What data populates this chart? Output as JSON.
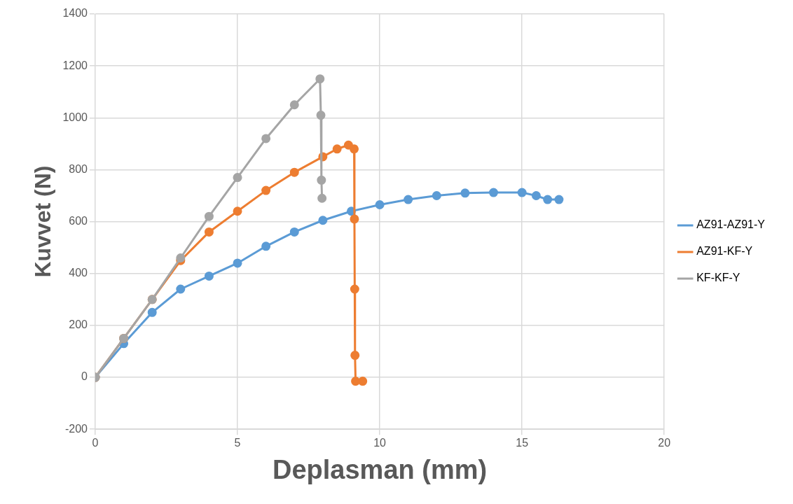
{
  "chart_data": {
    "type": "line",
    "xlabel": "Deplasman (mm)",
    "ylabel": "Kuvvet (N)",
    "xlim": [
      0,
      20
    ],
    "xticks": [
      0,
      5,
      10,
      15,
      20
    ],
    "ylim": [
      -200,
      1400
    ],
    "yticks": [
      -200,
      0,
      200,
      400,
      600,
      800,
      1000,
      1200,
      1400
    ],
    "grid": true,
    "legend": "right",
    "marker": "circle",
    "line_style": "solid",
    "series": [
      {
        "name": "AZ91-AZ91-Y",
        "color": "#5b9bd5",
        "x": [
          0,
          1,
          2,
          3,
          4,
          5,
          6,
          7,
          8,
          9,
          10,
          11,
          12,
          13,
          14,
          15,
          15.5,
          15.9,
          16.3
        ],
        "values": [
          0,
          130,
          250,
          340,
          390,
          440,
          505,
          560,
          605,
          640,
          665,
          685,
          700,
          710,
          712,
          712,
          700,
          685,
          685
        ]
      },
      {
        "name": "AZ91-KF-Y",
        "color": "#ed7d31",
        "x": [
          0,
          1,
          2,
          3,
          4,
          5,
          6,
          7,
          8,
          8.5,
          8.9,
          9.1,
          9.11,
          9.12,
          9.13,
          9.15,
          9.4
        ],
        "values": [
          0,
          150,
          300,
          450,
          560,
          640,
          720,
          790,
          850,
          880,
          895,
          880,
          610,
          340,
          85,
          -15,
          -15
        ]
      },
      {
        "name": "KF-KF-Y",
        "color": "#a5a5a5",
        "x": [
          0,
          1,
          2,
          3,
          4,
          5,
          6,
          7,
          7.9,
          7.93,
          7.95,
          7.97
        ],
        "values": [
          0,
          150,
          300,
          460,
          620,
          770,
          920,
          1050,
          1150,
          1010,
          760,
          690
        ]
      }
    ]
  }
}
